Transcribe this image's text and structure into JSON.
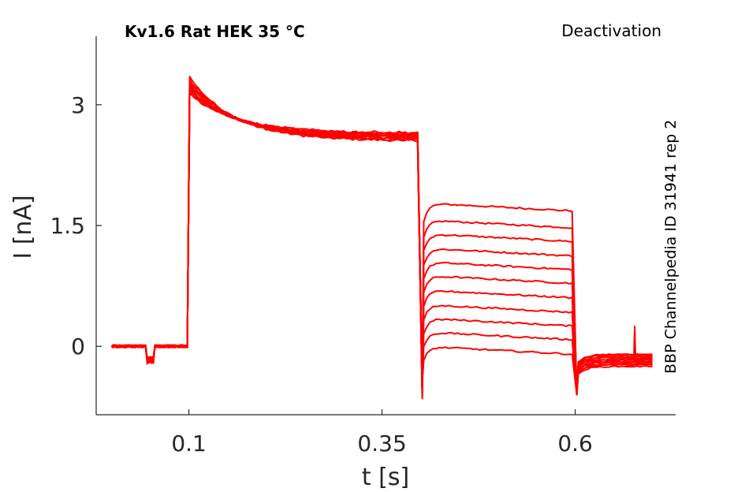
{
  "chart_data": {
    "type": "line",
    "title": "Kv1.6  Rat  HEK  35 °C",
    "protocol": "Deactivation",
    "side_label": "BBP Channelpedia ID 31941 rep 2",
    "xlabel": "t [s]",
    "ylabel": "I [nA]",
    "xlim": [
      -0.02,
      0.73
    ],
    "ylim": [
      -0.85,
      3.85
    ],
    "xticks": [
      0.1,
      0.35,
      0.6
    ],
    "xtick_labels": [
      "0.1",
      "0.35",
      "0.6"
    ],
    "yticks": [
      0,
      1.5,
      3
    ],
    "ytick_labels": [
      "0",
      "1.5",
      "3"
    ],
    "grid": false,
    "trace_color": "#ff0000",
    "time_points": [
      0.1,
      0.4,
      0.6
    ],
    "series": [
      {
        "values": {
          "peak": 3.35,
          "plateau": 2.55,
          "deact": 1.78,
          "tail": -0.1
        }
      },
      {
        "values": {
          "peak": 3.32,
          "plateau": 2.56,
          "deact": 1.57,
          "tail": -0.11
        }
      },
      {
        "values": {
          "peak": 3.3,
          "plateau": 2.57,
          "deact": 1.4,
          "tail": -0.13
        }
      },
      {
        "values": {
          "peak": 3.28,
          "plateau": 2.58,
          "deact": 1.22,
          "tail": -0.14
        }
      },
      {
        "values": {
          "peak": 3.26,
          "plateau": 2.59,
          "deact": 1.05,
          "tail": -0.16
        }
      },
      {
        "values": {
          "peak": 3.24,
          "plateau": 2.6,
          "deact": 0.88,
          "tail": -0.17
        }
      },
      {
        "values": {
          "peak": 3.22,
          "plateau": 2.61,
          "deact": 0.7,
          "tail": -0.19
        }
      },
      {
        "values": {
          "peak": 3.2,
          "plateau": 2.62,
          "deact": 0.52,
          "tail": -0.2
        }
      },
      {
        "values": {
          "peak": 3.18,
          "plateau": 2.63,
          "deact": 0.35,
          "tail": -0.22
        }
      },
      {
        "values": {
          "peak": 3.16,
          "plateau": 2.64,
          "deact": 0.18,
          "tail": -0.23
        }
      },
      {
        "values": {
          "peak": 3.14,
          "plateau": 2.65,
          "deact": 0.0,
          "tail": -0.25
        }
      }
    ]
  }
}
